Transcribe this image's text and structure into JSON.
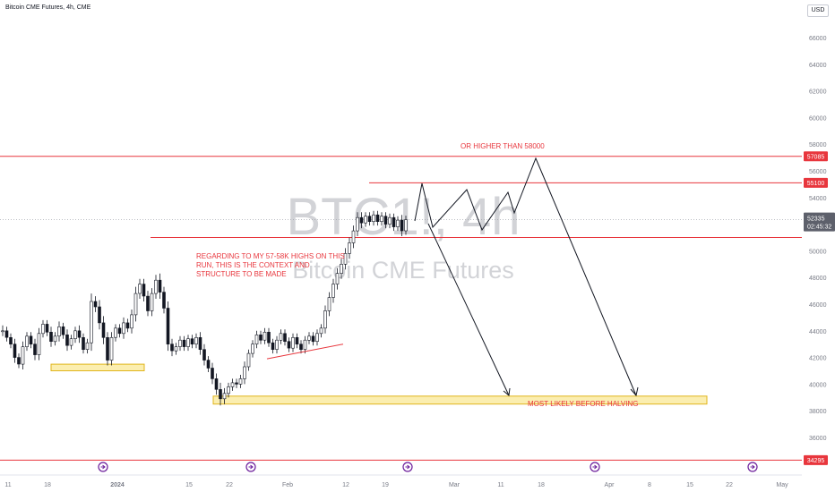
{
  "header": {
    "title": "Bitcoin CME Futures, 4h, CME",
    "currency": "USD"
  },
  "watermark": {
    "symbol": "BTC1!, 4h",
    "name": "Bitcoin CME Futures"
  },
  "chart_data": {
    "type": "candlestick",
    "y_ticks": [
      66000,
      64000,
      62000,
      60000,
      58000,
      56000,
      54000,
      50000,
      48000,
      46000,
      44000,
      42000,
      40000,
      38000,
      36000
    ],
    "ylim": [
      34000,
      67000
    ],
    "x_ticks": [
      "11",
      "18",
      "2024",
      "15",
      "22",
      "Feb",
      "12",
      "19",
      "Mar",
      "11",
      "18",
      "Apr",
      "8",
      "15",
      "22",
      "May"
    ],
    "x_tick_bold": "2024",
    "price_levels": [
      {
        "label": "57085",
        "value": 57085,
        "color": "#e8363d"
      },
      {
        "label": "55100",
        "value": 55100,
        "color": "#e8363d"
      },
      {
        "label": "34295",
        "value": 34295,
        "color": "#e8363d"
      }
    ],
    "current_price": {
      "label": "52335",
      "countdown": "02:45:32",
      "value": 52335
    },
    "annotations": [
      "OR HIGHER THAN 58000",
      "REGARDING TO MY 57-58K HIGHS ON THIS",
      "RUN, THIS IS THE CONTEXT AND",
      "STRUCTURE TO BE MADE",
      "MOST LIKELY BEFORE HALVING"
    ],
    "zones": [
      {
        "name": "january-support-zone",
        "from": 41000,
        "to": 41500
      },
      {
        "name": "target-zone",
        "from": 38500,
        "to": 39100
      }
    ],
    "candle_path": [
      [
        44000,
        0.4
      ],
      [
        43500,
        0.3
      ],
      [
        43000,
        0.3
      ],
      [
        42000,
        0.4
      ],
      [
        41500,
        0.3
      ],
      [
        42800,
        0.4
      ],
      [
        43600,
        0.3
      ],
      [
        43000,
        0.3
      ],
      [
        42200,
        0.4
      ],
      [
        43800,
        0.4
      ],
      [
        44500,
        0.3
      ],
      [
        43900,
        0.3
      ],
      [
        43200,
        0.4
      ],
      [
        43600,
        0.3
      ],
      [
        44300,
        0.4
      ],
      [
        43700,
        0.3
      ],
      [
        42900,
        0.4
      ],
      [
        43400,
        0.3
      ],
      [
        44000,
        0.3
      ],
      [
        43500,
        0.4
      ],
      [
        42600,
        0.3
      ],
      [
        43100,
        0.3
      ],
      [
        46200,
        0.6
      ],
      [
        45800,
        0.4
      ],
      [
        44600,
        0.5
      ],
      [
        43500,
        0.5
      ],
      [
        41800,
        0.4
      ],
      [
        43500,
        0.4
      ],
      [
        44200,
        0.3
      ],
      [
        43800,
        0.3
      ],
      [
        44600,
        0.4
      ],
      [
        44200,
        0.3
      ],
      [
        45200,
        0.4
      ],
      [
        46800,
        0.5
      ],
      [
        47500,
        0.4
      ],
      [
        46600,
        0.4
      ],
      [
        45500,
        0.4
      ],
      [
        46800,
        0.4
      ],
      [
        47800,
        0.4
      ],
      [
        46900,
        0.5
      ],
      [
        45700,
        0.4
      ],
      [
        43000,
        0.5
      ],
      [
        42500,
        0.4
      ],
      [
        42800,
        0.3
      ],
      [
        43300,
        0.3
      ],
      [
        42800,
        0.3
      ],
      [
        43400,
        0.3
      ],
      [
        43000,
        0.3
      ],
      [
        43500,
        0.3
      ],
      [
        42600,
        0.4
      ],
      [
        41800,
        0.4
      ],
      [
        41200,
        0.3
      ],
      [
        40400,
        0.4
      ],
      [
        39600,
        0.4
      ],
      [
        38900,
        0.5
      ],
      [
        39300,
        0.4
      ],
      [
        39800,
        0.3
      ],
      [
        40100,
        0.3
      ],
      [
        40000,
        0.3
      ],
      [
        40400,
        0.3
      ],
      [
        41300,
        0.4
      ],
      [
        42300,
        0.3
      ],
      [
        43000,
        0.3
      ],
      [
        43700,
        0.3
      ],
      [
        43300,
        0.3
      ],
      [
        43900,
        0.3
      ],
      [
        43100,
        0.3
      ],
      [
        42600,
        0.3
      ],
      [
        43300,
        0.3
      ],
      [
        43800,
        0.3
      ],
      [
        43200,
        0.3
      ],
      [
        42700,
        0.3
      ],
      [
        43500,
        0.3
      ],
      [
        43000,
        0.3
      ],
      [
        42600,
        0.3
      ],
      [
        43300,
        0.3
      ],
      [
        43600,
        0.3
      ],
      [
        43200,
        0.3
      ],
      [
        43800,
        0.3
      ],
      [
        44200,
        0.3
      ],
      [
        45500,
        0.4
      ],
      [
        46500,
        0.4
      ],
      [
        47500,
        0.4
      ],
      [
        48300,
        0.4
      ],
      [
        49000,
        0.4
      ],
      [
        49800,
        0.4
      ],
      [
        50600,
        0.4
      ],
      [
        51500,
        0.4
      ],
      [
        52500,
        0.4
      ],
      [
        52100,
        0.4
      ],
      [
        52600,
        0.3
      ],
      [
        52200,
        0.3
      ],
      [
        52700,
        0.3
      ],
      [
        52200,
        0.3
      ],
      [
        52600,
        0.3
      ],
      [
        52000,
        0.3
      ],
      [
        52500,
        0.3
      ],
      [
        51800,
        0.3
      ],
      [
        52300,
        0.3
      ],
      [
        51500,
        0.4
      ],
      [
        52335,
        0.3
      ]
    ]
  },
  "colors": {
    "bull": "#131722",
    "bear": "#131722",
    "level": "#e8363d",
    "zone_fill": "#fbeeb0",
    "zone_border": "#e0b51c",
    "path": "#131722",
    "event": "#6a1b9a"
  }
}
